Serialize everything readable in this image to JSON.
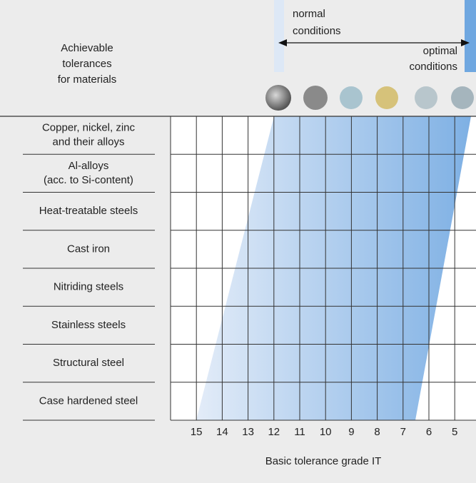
{
  "header": {
    "title_lines": [
      "Achievable",
      "tolerances",
      "for materials"
    ],
    "normal_conditions": [
      "normal",
      "conditions"
    ],
    "optimal_conditions": [
      "optimal",
      "conditions"
    ]
  },
  "rows": [
    [
      "Copper, nickel, zinc",
      "and their alloys"
    ],
    [
      "Al-alloys",
      "(acc. to Si-content)"
    ],
    [
      "Heat-treatable steels"
    ],
    [
      "Cast iron"
    ],
    [
      "Nitriding steels"
    ],
    [
      "Stainless steels"
    ],
    [
      "Structural steel"
    ],
    [
      "Case hardened steel"
    ]
  ],
  "columns": [
    15,
    14,
    13,
    12,
    11,
    10,
    9,
    8,
    7,
    6,
    5
  ],
  "axis_label": "Basic tolerance grade IT"
}
